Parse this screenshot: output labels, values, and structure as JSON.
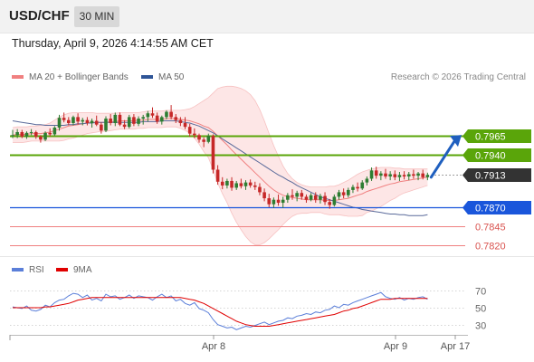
{
  "header": {
    "symbol": "USD/CHF",
    "timeframe": "30 MIN"
  },
  "datetime": "Thursday, April 9, 2026 4:14:55 AM CET",
  "legend": {
    "items": [
      {
        "label": "MA 20 + Bollinger Bands",
        "color": "#f08080"
      },
      {
        "label": "MA 50",
        "color": "#2f5597"
      }
    ]
  },
  "copyright": "Research © 2026 Trading Central",
  "rsi_legend": {
    "items": [
      {
        "label": "RSI",
        "color": "#5b7fd9"
      },
      {
        "label": "9MA",
        "color": "#e00000"
      }
    ]
  },
  "colors": {
    "up_candle": "#2e7d32",
    "down_candle": "#c62828",
    "resistance": "#5aa50a",
    "support_main": "#1a56db",
    "support_minor": "#f08080",
    "current_price_bg": "#333333",
    "arrow": "#1f5fbf",
    "bollinger_fill": "#fde3e3",
    "ma20": "#f08080",
    "ma50": "#5a6a9a"
  },
  "chart_data": [
    {
      "type": "candlestick",
      "title": "USD/CHF 30 MIN",
      "ylim": [
        0.7805,
        0.8035
      ],
      "x_ticks": [
        "Apr 8",
        "Apr 9",
        "Apr 17"
      ],
      "levels": [
        {
          "value": 0.7965,
          "label": "0.7965",
          "kind": "resistance"
        },
        {
          "value": 0.794,
          "label": "0.7940",
          "kind": "resistance"
        },
        {
          "value": 0.7913,
          "label": "0.7913",
          "kind": "current"
        },
        {
          "value": 0.787,
          "label": "0.7870",
          "kind": "support"
        },
        {
          "value": 0.7845,
          "label": "0.7845",
          "kind": "support_minor"
        },
        {
          "value": 0.782,
          "label": "0.7820",
          "kind": "support_minor"
        }
      ],
      "projection": {
        "from": 0.791,
        "to": 0.7965
      },
      "candles": [
        [
          0.7965,
          0.7973,
          0.7962,
          0.7966
        ],
        [
          0.7966,
          0.7974,
          0.7962,
          0.797
        ],
        [
          0.797,
          0.7973,
          0.7962,
          0.7964
        ],
        [
          0.7964,
          0.7971,
          0.7961,
          0.7969
        ],
        [
          0.7969,
          0.7974,
          0.7966,
          0.797
        ],
        [
          0.797,
          0.7972,
          0.7961,
          0.7964
        ],
        [
          0.7964,
          0.7966,
          0.7956,
          0.796
        ],
        [
          0.796,
          0.7971,
          0.7958,
          0.7969
        ],
        [
          0.7969,
          0.7975,
          0.7964,
          0.7967
        ],
        [
          0.7967,
          0.7978,
          0.7965,
          0.7976
        ],
        [
          0.7976,
          0.7993,
          0.7972,
          0.7989
        ],
        [
          0.7989,
          0.7996,
          0.7983,
          0.7986
        ],
        [
          0.7986,
          0.799,
          0.7979,
          0.7982
        ],
        [
          0.7982,
          0.7992,
          0.7979,
          0.799
        ],
        [
          0.799,
          0.7995,
          0.798,
          0.7984
        ],
        [
          0.7984,
          0.7989,
          0.7979,
          0.7986
        ],
        [
          0.7986,
          0.799,
          0.7979,
          0.7982
        ],
        [
          0.7982,
          0.7988,
          0.7976,
          0.7985
        ],
        [
          0.7985,
          0.7992,
          0.7978,
          0.798
        ],
        [
          0.798,
          0.7983,
          0.7968,
          0.7972
        ],
        [
          0.7972,
          0.7991,
          0.797,
          0.7988
        ],
        [
          0.7988,
          0.7994,
          0.7979,
          0.7982
        ],
        [
          0.7982,
          0.7996,
          0.7978,
          0.7993
        ],
        [
          0.7993,
          0.7996,
          0.7978,
          0.798
        ],
        [
          0.798,
          0.7986,
          0.7974,
          0.7977
        ],
        [
          0.7977,
          0.7993,
          0.7975,
          0.799
        ],
        [
          0.799,
          0.7994,
          0.7978,
          0.7981
        ],
        [
          0.7981,
          0.7991,
          0.7978,
          0.7988
        ],
        [
          0.7988,
          0.7993,
          0.798,
          0.799
        ],
        [
          0.799,
          0.7998,
          0.7984,
          0.7995
        ],
        [
          0.7995,
          0.8003,
          0.7989,
          0.7992
        ],
        [
          0.7992,
          0.7996,
          0.7981,
          0.7984
        ],
        [
          0.7984,
          0.7992,
          0.798,
          0.799
        ],
        [
          0.799,
          0.7999,
          0.7987,
          0.7997
        ],
        [
          0.7997,
          0.8006,
          0.7987,
          0.799
        ],
        [
          0.799,
          0.7994,
          0.7982,
          0.7986
        ],
        [
          0.7986,
          0.799,
          0.7978,
          0.7982
        ],
        [
          0.7982,
          0.799,
          0.7974,
          0.7977
        ],
        [
          0.7977,
          0.7981,
          0.7964,
          0.7968
        ],
        [
          0.7968,
          0.7975,
          0.7962,
          0.7966
        ],
        [
          0.7966,
          0.7968,
          0.7956,
          0.796
        ],
        [
          0.796,
          0.7963,
          0.795,
          0.7957
        ],
        [
          0.7957,
          0.7968,
          0.7955,
          0.7965
        ],
        [
          0.7965,
          0.7967,
          0.7915,
          0.792
        ],
        [
          0.792,
          0.7926,
          0.79,
          0.7904
        ],
        [
          0.7904,
          0.791,
          0.7894,
          0.7899
        ],
        [
          0.7899,
          0.7908,
          0.7895,
          0.7905
        ],
        [
          0.7905,
          0.791,
          0.7892,
          0.7896
        ],
        [
          0.7896,
          0.7905,
          0.7893,
          0.7902
        ],
        [
          0.7902,
          0.7908,
          0.7895,
          0.7898
        ],
        [
          0.7898,
          0.7906,
          0.7893,
          0.7903
        ],
        [
          0.7903,
          0.7907,
          0.7896,
          0.7899
        ],
        [
          0.7899,
          0.7904,
          0.7893,
          0.7897
        ],
        [
          0.7897,
          0.7902,
          0.7886,
          0.789
        ],
        [
          0.789,
          0.7895,
          0.7878,
          0.7882
        ],
        [
          0.7882,
          0.7888,
          0.787,
          0.7874
        ],
        [
          0.7874,
          0.7883,
          0.7869,
          0.788
        ],
        [
          0.788,
          0.7887,
          0.7872,
          0.7876
        ],
        [
          0.7876,
          0.7884,
          0.7869,
          0.788
        ],
        [
          0.788,
          0.7889,
          0.7876,
          0.7886
        ],
        [
          0.7886,
          0.7894,
          0.788,
          0.7884
        ],
        [
          0.7884,
          0.7892,
          0.7878,
          0.7889
        ],
        [
          0.7889,
          0.7893,
          0.788,
          0.7884
        ],
        [
          0.7884,
          0.7887,
          0.7876,
          0.788
        ],
        [
          0.788,
          0.7889,
          0.7878,
          0.7886
        ],
        [
          0.7886,
          0.789,
          0.7876,
          0.788
        ],
        [
          0.788,
          0.7888,
          0.7875,
          0.7885
        ],
        [
          0.7885,
          0.789,
          0.7873,
          0.7877
        ],
        [
          0.7877,
          0.7881,
          0.7868,
          0.7873
        ],
        [
          0.7873,
          0.7887,
          0.7871,
          0.7884
        ],
        [
          0.7884,
          0.7893,
          0.788,
          0.789
        ],
        [
          0.789,
          0.7895,
          0.7882,
          0.7886
        ],
        [
          0.7886,
          0.7896,
          0.7883,
          0.7893
        ],
        [
          0.7893,
          0.79,
          0.7889,
          0.7897
        ],
        [
          0.7897,
          0.7903,
          0.7891,
          0.7895
        ],
        [
          0.7895,
          0.7906,
          0.7893,
          0.7903
        ],
        [
          0.7903,
          0.7911,
          0.7899,
          0.7908
        ],
        [
          0.7908,
          0.7923,
          0.7905,
          0.7919
        ],
        [
          0.7919,
          0.7924,
          0.7908,
          0.7912
        ],
        [
          0.7912,
          0.7918,
          0.7906,
          0.7915
        ],
        [
          0.7915,
          0.7921,
          0.7908,
          0.7911
        ],
        [
          0.7911,
          0.7918,
          0.7906,
          0.7914
        ],
        [
          0.7914,
          0.7919,
          0.7906,
          0.791
        ],
        [
          0.791,
          0.7917,
          0.7905,
          0.7913
        ],
        [
          0.7913,
          0.7918,
          0.7907,
          0.7911
        ],
        [
          0.7911,
          0.7917,
          0.7906,
          0.7914
        ],
        [
          0.7914,
          0.792,
          0.7908,
          0.7912
        ],
        [
          0.7912,
          0.7917,
          0.7906,
          0.7915
        ],
        [
          0.7915,
          0.792,
          0.7907,
          0.791
        ],
        [
          0.791,
          0.7916,
          0.7906,
          0.7913
        ]
      ],
      "ma20": [
        0.7966,
        0.7967,
        0.7967,
        0.7967,
        0.7968,
        0.7968,
        0.7968,
        0.7969,
        0.797,
        0.7972,
        0.7974,
        0.7976,
        0.7978,
        0.7979,
        0.798,
        0.7981,
        0.7982,
        0.7983,
        0.7983,
        0.7983,
        0.7983,
        0.7984,
        0.7984,
        0.7985,
        0.7985,
        0.7985,
        0.7985,
        0.7986,
        0.7986,
        0.7987,
        0.7987,
        0.7987,
        0.7987,
        0.7988,
        0.7988,
        0.7988,
        0.7987,
        0.7986,
        0.7985,
        0.7983,
        0.7981,
        0.7978,
        0.7976,
        0.7971,
        0.7965,
        0.7959,
        0.7953,
        0.7946,
        0.794,
        0.7934,
        0.7928,
        0.7922,
        0.7916,
        0.791,
        0.7904,
        0.7898,
        0.7893,
        0.7889,
        0.7886,
        0.7884,
        0.7883,
        0.7882,
        0.7881,
        0.788,
        0.788,
        0.788,
        0.788,
        0.7879,
        0.7879,
        0.7879,
        0.788,
        0.7881,
        0.7882,
        0.7884,
        0.7886,
        0.7888,
        0.7891,
        0.7893,
        0.7895,
        0.7897,
        0.7899,
        0.7901,
        0.7902,
        0.7904,
        0.7905,
        0.7906,
        0.7907,
        0.7908,
        0.7909,
        0.791
      ],
      "bb_upper": [
        0.7976,
        0.7977,
        0.7977,
        0.7977,
        0.7978,
        0.7978,
        0.7979,
        0.798,
        0.7982,
        0.7986,
        0.799,
        0.7993,
        0.7995,
        0.7996,
        0.7996,
        0.7996,
        0.7996,
        0.7996,
        0.7995,
        0.7995,
        0.7995,
        0.7995,
        0.7995,
        0.7996,
        0.7996,
        0.7996,
        0.7996,
        0.7996,
        0.7997,
        0.7998,
        0.7998,
        0.7998,
        0.7998,
        0.7999,
        0.7999,
        0.7999,
        0.7999,
        0.8,
        0.8001,
        0.8004,
        0.8008,
        0.8012,
        0.8016,
        0.8022,
        0.8028,
        0.803,
        0.8031,
        0.8031,
        0.803,
        0.8028,
        0.8025,
        0.802,
        0.8012,
        0.8,
        0.7985,
        0.7968,
        0.7952,
        0.7938,
        0.7925,
        0.7915,
        0.7908,
        0.7903,
        0.79,
        0.7898,
        0.7897,
        0.7897,
        0.7897,
        0.7897,
        0.7898,
        0.7898,
        0.79,
        0.7903,
        0.7906,
        0.791,
        0.7914,
        0.7917,
        0.7919,
        0.7921,
        0.7922,
        0.7923,
        0.7923,
        0.7923,
        0.7922,
        0.7922,
        0.7921,
        0.7921,
        0.7921,
        0.7921,
        0.7921,
        0.7921
      ],
      "bb_lower": [
        0.7956,
        0.7956,
        0.7956,
        0.7957,
        0.7958,
        0.7958,
        0.7958,
        0.7958,
        0.7958,
        0.7958,
        0.7958,
        0.7959,
        0.7961,
        0.7962,
        0.7964,
        0.7966,
        0.7968,
        0.7969,
        0.797,
        0.7971,
        0.7971,
        0.7972,
        0.7973,
        0.7974,
        0.7974,
        0.7974,
        0.7974,
        0.7975,
        0.7975,
        0.7976,
        0.7976,
        0.7976,
        0.7976,
        0.7977,
        0.7977,
        0.7977,
        0.7975,
        0.7972,
        0.7969,
        0.7962,
        0.7954,
        0.7944,
        0.7936,
        0.792,
        0.7902,
        0.7888,
        0.7876,
        0.7862,
        0.785,
        0.784,
        0.7831,
        0.7824,
        0.782,
        0.782,
        0.7823,
        0.7828,
        0.7834,
        0.784,
        0.7847,
        0.7853,
        0.7858,
        0.7861,
        0.7862,
        0.7862,
        0.7863,
        0.7863,
        0.7863,
        0.7861,
        0.786,
        0.786,
        0.786,
        0.7859,
        0.7858,
        0.7858,
        0.7858,
        0.7859,
        0.7863,
        0.7865,
        0.7868,
        0.7871,
        0.7875,
        0.7879,
        0.7882,
        0.7886,
        0.7889,
        0.7891,
        0.7893,
        0.7895,
        0.7897,
        0.7899
      ],
      "ma50": [
        0.7985,
        0.7984,
        0.7983,
        0.7982,
        0.7981,
        0.798,
        0.798,
        0.7979,
        0.7979,
        0.7979,
        0.7979,
        0.7979,
        0.798,
        0.798,
        0.7981,
        0.7981,
        0.7982,
        0.7982,
        0.7983,
        0.7983,
        0.7983,
        0.7983,
        0.7983,
        0.7983,
        0.7983,
        0.7983,
        0.7983,
        0.7983,
        0.7984,
        0.7984,
        0.7984,
        0.7984,
        0.7985,
        0.7985,
        0.7985,
        0.7985,
        0.7984,
        0.7983,
        0.7982,
        0.798,
        0.7978,
        0.7975,
        0.7972,
        0.7969,
        0.7965,
        0.7961,
        0.7957,
        0.7953,
        0.7949,
        0.7945,
        0.7941,
        0.7937,
        0.7933,
        0.7929,
        0.7925,
        0.7921,
        0.7917,
        0.7913,
        0.791,
        0.7906,
        0.7903,
        0.7899,
        0.7896,
        0.7893,
        0.789,
        0.7887,
        0.7884,
        0.7882,
        0.788,
        0.7878,
        0.7876,
        0.7874,
        0.7872,
        0.787,
        0.7869,
        0.7867,
        0.7866,
        0.7865,
        0.7864,
        0.7863,
        0.7862,
        0.7861,
        0.7861,
        0.786,
        0.786,
        0.7859,
        0.7859,
        0.7859,
        0.7859,
        0.786
      ]
    },
    {
      "type": "line",
      "title": "RSI",
      "ylim": [
        20,
        80
      ],
      "y_ticks": [
        70,
        50,
        30
      ],
      "series": [
        {
          "name": "RSI",
          "color": "#5b7fd9",
          "values": [
            51,
            50,
            49,
            52,
            47,
            46,
            48,
            53,
            51,
            56,
            59,
            60,
            64,
            67,
            66,
            62,
            65,
            59,
            61,
            58,
            66,
            63,
            64,
            60,
            62,
            65,
            61,
            64,
            63,
            62,
            59,
            63,
            66,
            62,
            64,
            58,
            60,
            55,
            53,
            56,
            49,
            47,
            44,
            36,
            30,
            28,
            26,
            27,
            24,
            26,
            28,
            27,
            29,
            31,
            33,
            30,
            32,
            34,
            35,
            38,
            37,
            40,
            41,
            43,
            42,
            45,
            44,
            47,
            48,
            52,
            50,
            54,
            53,
            56,
            58,
            60,
            62,
            64,
            66,
            68,
            63,
            61,
            60,
            62,
            59,
            61,
            60,
            62,
            63,
            60
          ]
        },
        {
          "name": "9MA",
          "color": "#e00000",
          "values": [
            50,
            50,
            50,
            50,
            50,
            50,
            50,
            51,
            51,
            52,
            53,
            54,
            55,
            57,
            59,
            60,
            61,
            62,
            62,
            62,
            62,
            62,
            62,
            62,
            62,
            62,
            62,
            62,
            62,
            62,
            62,
            62,
            62,
            62,
            62,
            62,
            62,
            61,
            60,
            59,
            57,
            55,
            52,
            49,
            46,
            43,
            40,
            37,
            34,
            32,
            30,
            29,
            28,
            28,
            28,
            28,
            29,
            30,
            31,
            32,
            33,
            34,
            35,
            36,
            37,
            38,
            39,
            40,
            41,
            42,
            44,
            46,
            47,
            49,
            50,
            52,
            54,
            56,
            58,
            60,
            60,
            60,
            61,
            61,
            61,
            61,
            61,
            61,
            61,
            61
          ]
        }
      ]
    }
  ]
}
